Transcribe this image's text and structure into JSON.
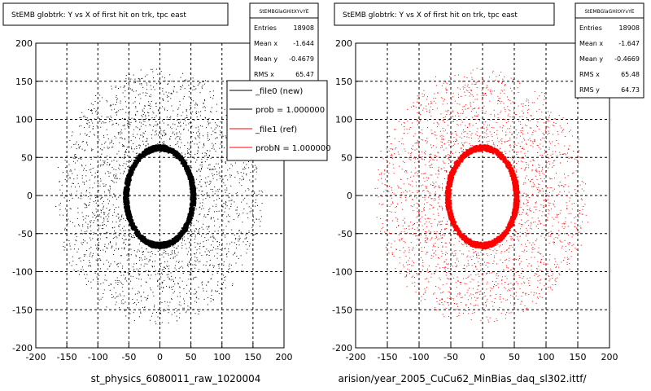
{
  "colors": {
    "file0": "#000000",
    "file1": "#ff0000",
    "background": "#ffffff"
  },
  "footer": "",
  "panels": [
    {
      "title": "StEMB globtrk: Y vs X of first hit on trk, tpc east",
      "xtitle": "st_physics_6080011_raw_1020004",
      "stats": {
        "name": "StEMBGlaGHitXYvYE",
        "rows": [
          {
            "label": "Entries",
            "value": "18908"
          },
          {
            "label": "Mean x",
            "value": "-1.644"
          },
          {
            "label": "Mean y",
            "value": "-0.4679"
          },
          {
            "label": "RMS x",
            "value": "65.47"
          }
        ]
      },
      "legend": [
        {
          "label": "_file0 (new)",
          "color": "#000000"
        },
        {
          "label": "prob = 1.000000",
          "color": "#000000"
        },
        {
          "label": "_file1 (ref)",
          "color": "#ff0000"
        },
        {
          "label": "probN = 1.000000",
          "color": "#ff0000"
        }
      ]
    },
    {
      "title": "StEMB globtrk: Y vs X of first hit on trk, tpc east",
      "xtitle": "arision/year_2005_CuCu62_MinBias_daq_sl302.ittf/",
      "stats": {
        "name": "StEMBGlaGHitXYvYE",
        "rows": [
          {
            "label": "Entries",
            "value": "18908"
          },
          {
            "label": "Mean x",
            "value": "-1.647"
          },
          {
            "label": "Mean y",
            "value": "-0.4669"
          },
          {
            "label": "RMS x",
            "value": "65.48"
          },
          {
            "label": "RMS y",
            "value": "64.73"
          }
        ]
      },
      "legend": []
    }
  ],
  "chart_data": [
    {
      "type": "scatter",
      "title": "StEMB globtrk: Y vs X of first hit on trk, tpc east",
      "xlabel": "st_physics_6080011_raw_1020004",
      "ylabel": "",
      "xlim": [
        -200,
        200
      ],
      "ylim": [
        -200,
        200
      ],
      "xticks": [
        -200,
        -150,
        -100,
        -50,
        0,
        50,
        100,
        150,
        200
      ],
      "yticks": [
        -200,
        -150,
        -100,
        -50,
        0,
        50,
        100,
        150,
        200
      ],
      "grid": true,
      "marker_color": "#000000",
      "series": [
        {
          "name": "_file0 (new)",
          "color": "#000000",
          "ring": {
            "center": [
              -1.644,
              -0.4679
            ],
            "inner_radius": [
              50,
              60
            ],
            "outer_radius": [
              55,
              65
            ],
            "band_width": 8
          },
          "halo": {
            "center": [
              -1.644,
              -0.4679
            ],
            "rms": [
              65.47,
              65
            ],
            "max_radius": 165
          }
        }
      ]
    },
    {
      "type": "scatter",
      "title": "StEMB globtrk: Y vs X of first hit on trk, tpc east",
      "xlabel": "arision/year_2005_CuCu62_MinBias_daq_sl302.ittf/",
      "ylabel": "",
      "xlim": [
        -200,
        200
      ],
      "ylim": [
        -200,
        200
      ],
      "xticks": [
        -200,
        -150,
        -100,
        -50,
        0,
        50,
        100,
        150,
        200
      ],
      "yticks": [
        -200,
        -150,
        -100,
        -50,
        0,
        50,
        100,
        150,
        200
      ],
      "grid": true,
      "marker_color": "#ff0000",
      "series": [
        {
          "name": "_file1 (ref)",
          "color": "#ff0000",
          "ring": {
            "center": [
              -1.647,
              -0.4669
            ],
            "inner_radius": [
              50,
              60
            ],
            "outer_radius": [
              55,
              65
            ],
            "band_width": 8
          },
          "halo": {
            "center": [
              -1.647,
              -0.4669
            ],
            "rms": [
              65.48,
              64.73
            ],
            "max_radius": 165
          }
        }
      ]
    }
  ]
}
